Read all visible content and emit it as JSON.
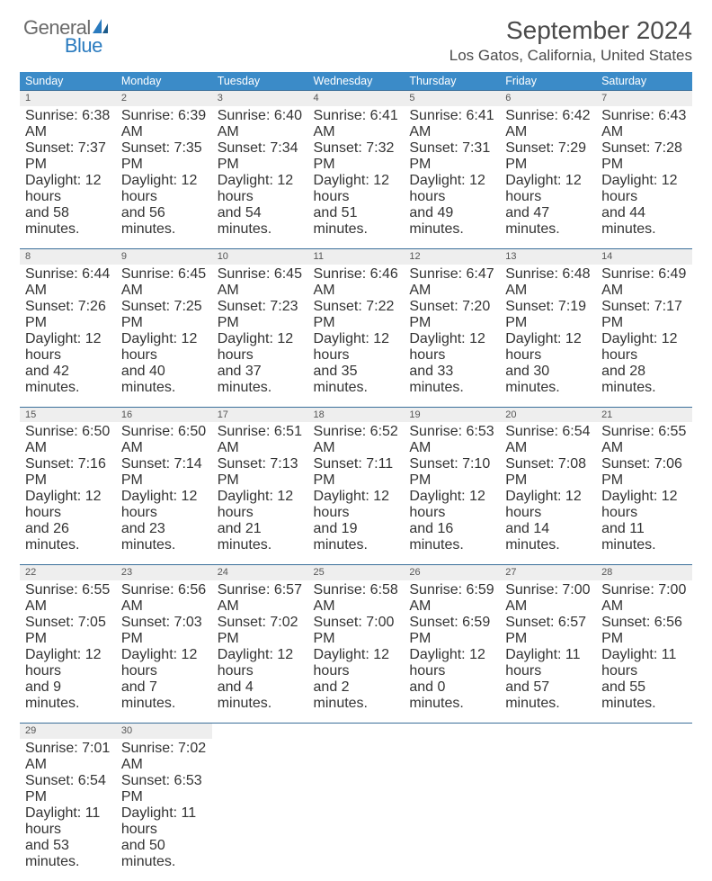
{
  "logo": {
    "text1": "General",
    "text2": "Blue"
  },
  "title": "September 2024",
  "location": "Los Gatos, California, United States",
  "colors": {
    "header_bg": "#3b8bc8",
    "header_text": "#ffffff",
    "row_border": "#3b6f9a",
    "daynum_bg": "#eeeeee",
    "logo_gray": "#6a6a6a",
    "logo_blue": "#2a7bbf"
  },
  "weekdays": [
    "Sunday",
    "Monday",
    "Tuesday",
    "Wednesday",
    "Thursday",
    "Friday",
    "Saturday"
  ],
  "weeks": [
    [
      {
        "n": "1",
        "sr": "Sunrise: 6:38 AM",
        "ss": "Sunset: 7:37 PM",
        "d1": "Daylight: 12 hours",
        "d2": "and 58 minutes."
      },
      {
        "n": "2",
        "sr": "Sunrise: 6:39 AM",
        "ss": "Sunset: 7:35 PM",
        "d1": "Daylight: 12 hours",
        "d2": "and 56 minutes."
      },
      {
        "n": "3",
        "sr": "Sunrise: 6:40 AM",
        "ss": "Sunset: 7:34 PM",
        "d1": "Daylight: 12 hours",
        "d2": "and 54 minutes."
      },
      {
        "n": "4",
        "sr": "Sunrise: 6:41 AM",
        "ss": "Sunset: 7:32 PM",
        "d1": "Daylight: 12 hours",
        "d2": "and 51 minutes."
      },
      {
        "n": "5",
        "sr": "Sunrise: 6:41 AM",
        "ss": "Sunset: 7:31 PM",
        "d1": "Daylight: 12 hours",
        "d2": "and 49 minutes."
      },
      {
        "n": "6",
        "sr": "Sunrise: 6:42 AM",
        "ss": "Sunset: 7:29 PM",
        "d1": "Daylight: 12 hours",
        "d2": "and 47 minutes."
      },
      {
        "n": "7",
        "sr": "Sunrise: 6:43 AM",
        "ss": "Sunset: 7:28 PM",
        "d1": "Daylight: 12 hours",
        "d2": "and 44 minutes."
      }
    ],
    [
      {
        "n": "8",
        "sr": "Sunrise: 6:44 AM",
        "ss": "Sunset: 7:26 PM",
        "d1": "Daylight: 12 hours",
        "d2": "and 42 minutes."
      },
      {
        "n": "9",
        "sr": "Sunrise: 6:45 AM",
        "ss": "Sunset: 7:25 PM",
        "d1": "Daylight: 12 hours",
        "d2": "and 40 minutes."
      },
      {
        "n": "10",
        "sr": "Sunrise: 6:45 AM",
        "ss": "Sunset: 7:23 PM",
        "d1": "Daylight: 12 hours",
        "d2": "and 37 minutes."
      },
      {
        "n": "11",
        "sr": "Sunrise: 6:46 AM",
        "ss": "Sunset: 7:22 PM",
        "d1": "Daylight: 12 hours",
        "d2": "and 35 minutes."
      },
      {
        "n": "12",
        "sr": "Sunrise: 6:47 AM",
        "ss": "Sunset: 7:20 PM",
        "d1": "Daylight: 12 hours",
        "d2": "and 33 minutes."
      },
      {
        "n": "13",
        "sr": "Sunrise: 6:48 AM",
        "ss": "Sunset: 7:19 PM",
        "d1": "Daylight: 12 hours",
        "d2": "and 30 minutes."
      },
      {
        "n": "14",
        "sr": "Sunrise: 6:49 AM",
        "ss": "Sunset: 7:17 PM",
        "d1": "Daylight: 12 hours",
        "d2": "and 28 minutes."
      }
    ],
    [
      {
        "n": "15",
        "sr": "Sunrise: 6:50 AM",
        "ss": "Sunset: 7:16 PM",
        "d1": "Daylight: 12 hours",
        "d2": "and 26 minutes."
      },
      {
        "n": "16",
        "sr": "Sunrise: 6:50 AM",
        "ss": "Sunset: 7:14 PM",
        "d1": "Daylight: 12 hours",
        "d2": "and 23 minutes."
      },
      {
        "n": "17",
        "sr": "Sunrise: 6:51 AM",
        "ss": "Sunset: 7:13 PM",
        "d1": "Daylight: 12 hours",
        "d2": "and 21 minutes."
      },
      {
        "n": "18",
        "sr": "Sunrise: 6:52 AM",
        "ss": "Sunset: 7:11 PM",
        "d1": "Daylight: 12 hours",
        "d2": "and 19 minutes."
      },
      {
        "n": "19",
        "sr": "Sunrise: 6:53 AM",
        "ss": "Sunset: 7:10 PM",
        "d1": "Daylight: 12 hours",
        "d2": "and 16 minutes."
      },
      {
        "n": "20",
        "sr": "Sunrise: 6:54 AM",
        "ss": "Sunset: 7:08 PM",
        "d1": "Daylight: 12 hours",
        "d2": "and 14 minutes."
      },
      {
        "n": "21",
        "sr": "Sunrise: 6:55 AM",
        "ss": "Sunset: 7:06 PM",
        "d1": "Daylight: 12 hours",
        "d2": "and 11 minutes."
      }
    ],
    [
      {
        "n": "22",
        "sr": "Sunrise: 6:55 AM",
        "ss": "Sunset: 7:05 PM",
        "d1": "Daylight: 12 hours",
        "d2": "and 9 minutes."
      },
      {
        "n": "23",
        "sr": "Sunrise: 6:56 AM",
        "ss": "Sunset: 7:03 PM",
        "d1": "Daylight: 12 hours",
        "d2": "and 7 minutes."
      },
      {
        "n": "24",
        "sr": "Sunrise: 6:57 AM",
        "ss": "Sunset: 7:02 PM",
        "d1": "Daylight: 12 hours",
        "d2": "and 4 minutes."
      },
      {
        "n": "25",
        "sr": "Sunrise: 6:58 AM",
        "ss": "Sunset: 7:00 PM",
        "d1": "Daylight: 12 hours",
        "d2": "and 2 minutes."
      },
      {
        "n": "26",
        "sr": "Sunrise: 6:59 AM",
        "ss": "Sunset: 6:59 PM",
        "d1": "Daylight: 12 hours",
        "d2": "and 0 minutes."
      },
      {
        "n": "27",
        "sr": "Sunrise: 7:00 AM",
        "ss": "Sunset: 6:57 PM",
        "d1": "Daylight: 11 hours",
        "d2": "and 57 minutes."
      },
      {
        "n": "28",
        "sr": "Sunrise: 7:00 AM",
        "ss": "Sunset: 6:56 PM",
        "d1": "Daylight: 11 hours",
        "d2": "and 55 minutes."
      }
    ],
    [
      {
        "n": "29",
        "sr": "Sunrise: 7:01 AM",
        "ss": "Sunset: 6:54 PM",
        "d1": "Daylight: 11 hours",
        "d2": "and 53 minutes."
      },
      {
        "n": "30",
        "sr": "Sunrise: 7:02 AM",
        "ss": "Sunset: 6:53 PM",
        "d1": "Daylight: 11 hours",
        "d2": "and 50 minutes."
      },
      null,
      null,
      null,
      null,
      null
    ]
  ]
}
